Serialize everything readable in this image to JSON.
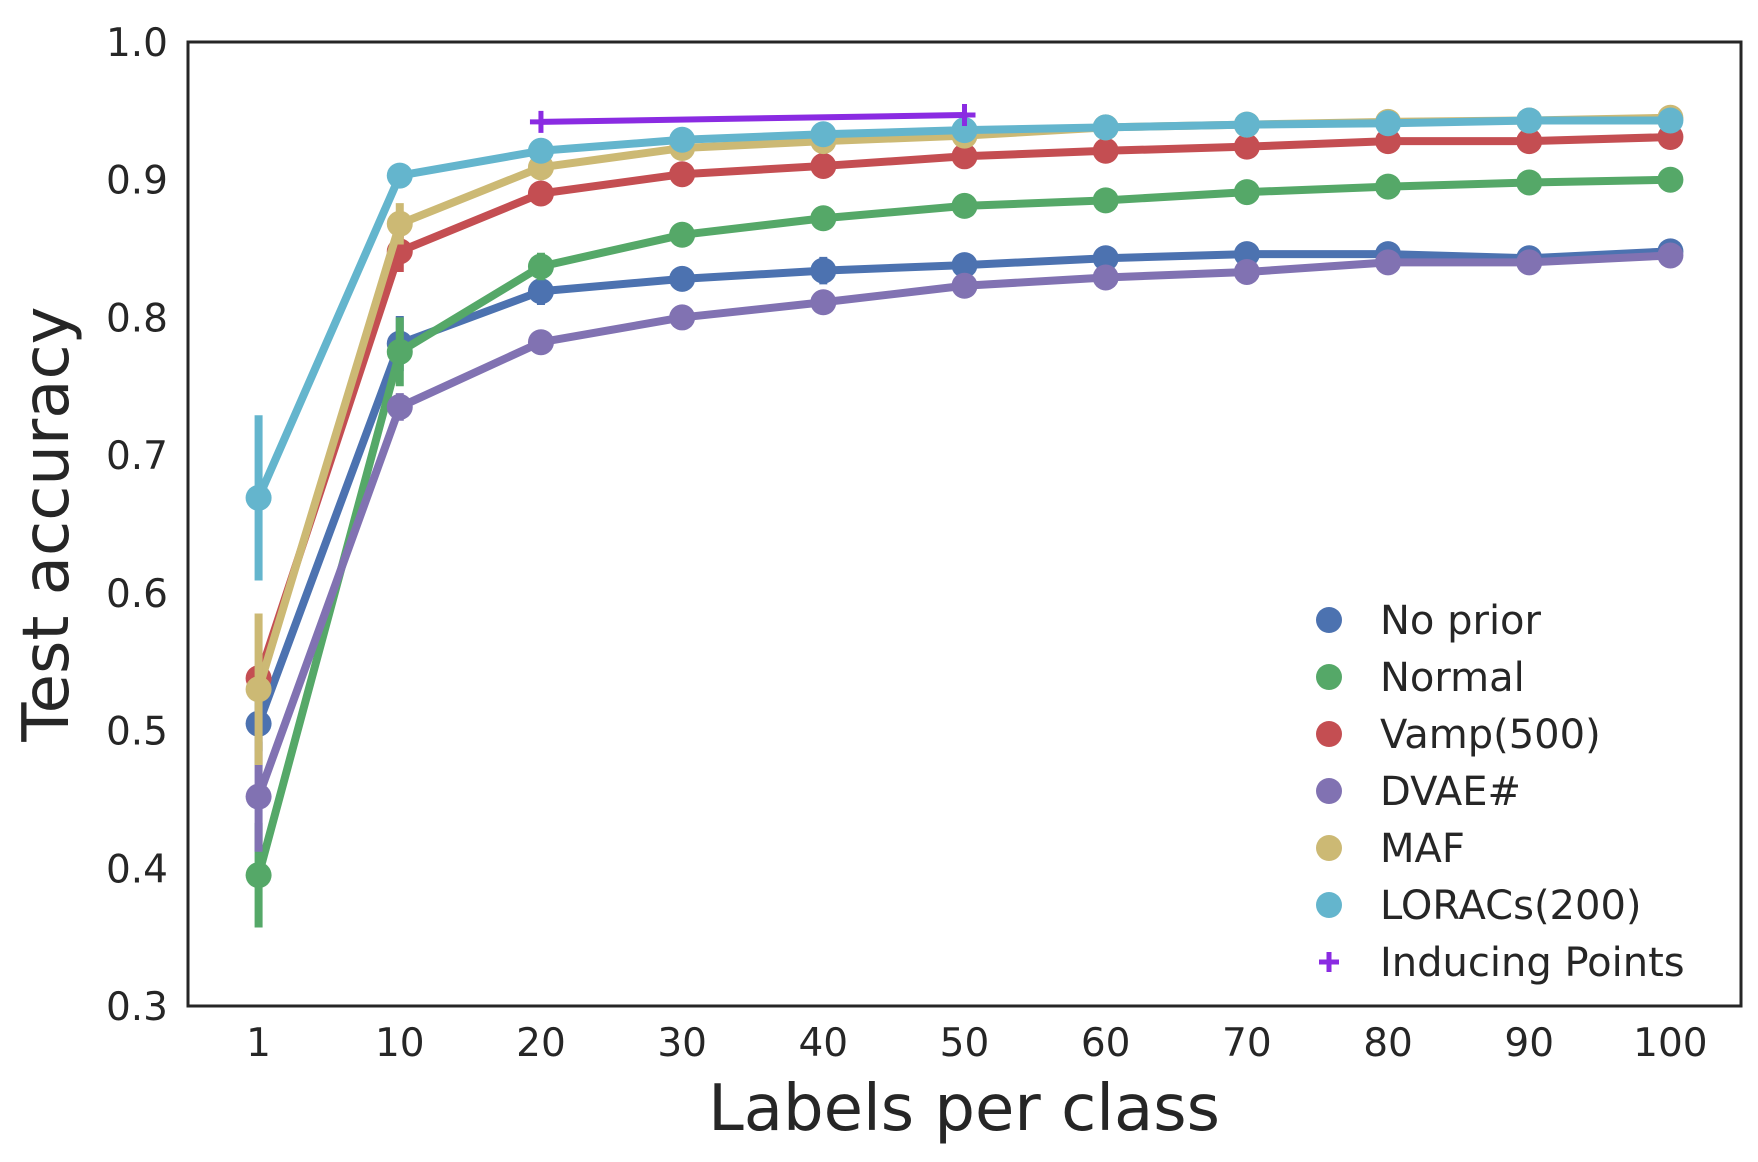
{
  "chart_data": {
    "type": "line",
    "xlabel": "Labels per class",
    "ylabel": "Test accuracy",
    "categories": [
      "1",
      "10",
      "20",
      "30",
      "40",
      "50",
      "60",
      "70",
      "80",
      "90",
      "100"
    ],
    "yticks": [
      "0.3",
      "0.4",
      "0.5",
      "0.6",
      "0.7",
      "0.8",
      "0.9",
      "1.0"
    ],
    "ylim": [
      0.3,
      1.0
    ],
    "grid": false,
    "legend_position": "bottom-right",
    "series": [
      {
        "name": "No prior",
        "color": "#4c72b0",
        "values": [
          0.505,
          0.781,
          0.819,
          0.828,
          0.834,
          0.838,
          0.843,
          0.846,
          0.846,
          0.843,
          0.848
        ],
        "err": [
          0.02,
          0.02,
          0.01,
          0.008,
          0.01,
          0.008,
          0.005,
          0.005,
          0.004,
          0.004,
          0.004
        ]
      },
      {
        "name": "Normal",
        "color": "#55a868",
        "values": [
          0.395,
          0.775,
          0.837,
          0.86,
          0.872,
          0.881,
          0.885,
          0.891,
          0.895,
          0.898,
          0.9
        ],
        "err": [
          0.038,
          0.025,
          0.01,
          0.005,
          0.005,
          0.004,
          0.003,
          0.003,
          0.003,
          0.003,
          0.003
        ]
      },
      {
        "name": "Vamp(500)",
        "color": "#c44e52",
        "values": [
          0.538,
          0.848,
          0.89,
          0.904,
          0.91,
          0.917,
          0.921,
          0.924,
          0.928,
          0.928,
          0.931
        ],
        "err": [
          0.01,
          0.015,
          0.008,
          0.005,
          0.004,
          0.003,
          0.003,
          0.003,
          0.002,
          0.002,
          0.002
        ]
      },
      {
        "name": "DVAE#",
        "color": "#8172b2",
        "values": [
          0.452,
          0.735,
          0.782,
          0.8,
          0.811,
          0.823,
          0.829,
          0.833,
          0.84,
          0.84,
          0.845
        ],
        "err": [
          0.04,
          0.01,
          0.006,
          0.005,
          0.004,
          0.003,
          0.003,
          0.003,
          0.003,
          0.003,
          0.003
        ]
      },
      {
        "name": "MAF",
        "color": "#ccb974",
        "values": [
          0.53,
          0.868,
          0.909,
          0.923,
          0.928,
          0.932,
          0.938,
          0.94,
          0.942,
          0.943,
          0.945
        ],
        "err": [
          0.055,
          0.015,
          0.006,
          0.004,
          0.003,
          0.003,
          0.002,
          0.002,
          0.002,
          0.002,
          0.002
        ]
      },
      {
        "name": "LORACs(200)",
        "color": "#64b5cd",
        "values": [
          0.669,
          0.903,
          0.921,
          0.929,
          0.933,
          0.936,
          0.938,
          0.94,
          0.941,
          0.943,
          0.943
        ],
        "err": [
          0.06,
          0.008,
          0.004,
          0.003,
          0.003,
          0.002,
          0.002,
          0.002,
          0.002,
          0.002,
          0.002
        ]
      }
    ],
    "inducing_points": {
      "name": "Inducing Points",
      "color": "#8a2be2",
      "x": [
        "20",
        "50"
      ],
      "values": [
        0.942,
        0.947
      ]
    }
  }
}
